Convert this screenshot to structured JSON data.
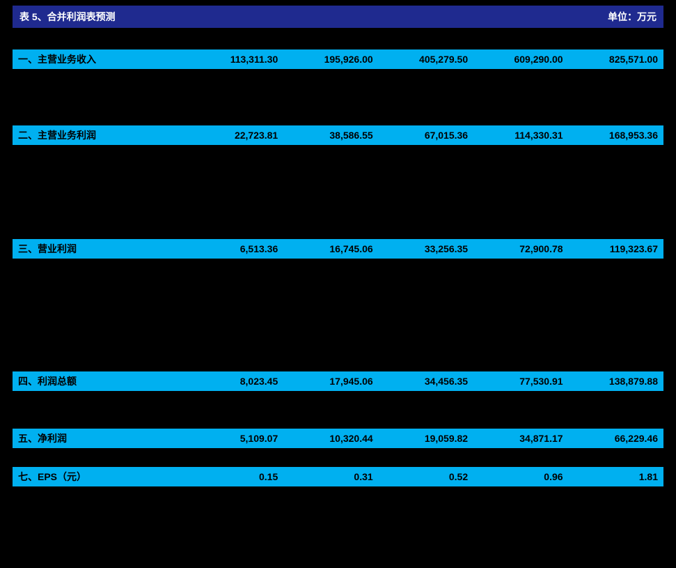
{
  "title_left": "表 5、合并利润表预测",
  "title_right": "单位：万元",
  "colors": {
    "header_bg": "#1f2a8f",
    "header_text": "#ffffff",
    "highlight_bg": "#00b0f0",
    "page_bg": "#000000"
  },
  "rows": [
    {
      "hl": false,
      "cells": [
        "",
        "",
        "",
        "",
        "",
        ""
      ]
    },
    {
      "hl": true,
      "cells": [
        "一、主营业务收入",
        "113,311.30",
        "195,926.00",
        "405,279.50",
        "609,290.00",
        "825,571.00"
      ]
    },
    {
      "hl": false,
      "cells": [
        "",
        "",
        "",
        "",
        "",
        ""
      ]
    },
    {
      "hl": false,
      "cells": [
        "",
        "",
        "",
        "",
        "",
        ""
      ]
    },
    {
      "hl": false,
      "cells": [
        "",
        "",
        "",
        "",
        "",
        ""
      ]
    },
    {
      "hl": true,
      "cells": [
        "二、主营业务利润",
        "22,723.81",
        "38,586.55",
        "67,015.36",
        "114,330.31",
        "168,953.36"
      ]
    },
    {
      "hl": false,
      "cells": [
        "",
        "",
        "",
        "",
        "",
        ""
      ]
    },
    {
      "hl": false,
      "cells": [
        "",
        "",
        "",
        "",
        "",
        ""
      ]
    },
    {
      "hl": false,
      "cells": [
        "",
        "",
        "",
        "",
        "",
        ""
      ]
    },
    {
      "hl": false,
      "cells": [
        "",
        "",
        "",
        "",
        "",
        ""
      ]
    },
    {
      "hl": false,
      "cells": [
        "",
        "",
        "",
        "",
        "",
        ""
      ]
    },
    {
      "hl": true,
      "cells": [
        "三、营业利润",
        "6,513.36",
        "16,745.06",
        "33,256.35",
        "72,900.78",
        "119,323.67"
      ]
    },
    {
      "hl": false,
      "cells": [
        "",
        "",
        "",
        "",
        "",
        ""
      ]
    },
    {
      "hl": false,
      "cells": [
        "",
        "",
        "",
        "",
        "",
        ""
      ]
    },
    {
      "hl": false,
      "cells": [
        "",
        "",
        "",
        "",
        "",
        ""
      ]
    },
    {
      "hl": false,
      "cells": [
        "",
        "",
        "",
        "",
        "",
        ""
      ]
    },
    {
      "hl": false,
      "cells": [
        "",
        "",
        "",
        "",
        "",
        ""
      ]
    },
    {
      "hl": false,
      "cells": [
        "",
        "",
        "",
        "",
        "",
        ""
      ]
    },
    {
      "hl": true,
      "cells": [
        "四、利润总额",
        "8,023.45",
        "17,945.06",
        "34,456.35",
        "77,530.91",
        "138,879.88"
      ]
    },
    {
      "hl": false,
      "cells": [
        "",
        "",
        "",
        "",
        "",
        ""
      ]
    },
    {
      "hl": false,
      "cells": [
        "",
        "",
        "",
        "",
        "",
        ""
      ]
    },
    {
      "hl": true,
      "cells": [
        "五、净利润",
        "5,109.07",
        "10,320.44",
        "19,059.82",
        "34,871.17",
        "66,229.46"
      ]
    },
    {
      "hl": false,
      "cells": [
        "",
        "",
        "",
        "",
        "",
        ""
      ]
    },
    {
      "hl": true,
      "cells": [
        "七、EPS（元）",
        "0.15",
        "0.31",
        "0.52",
        "0.96",
        "1.81"
      ]
    }
  ]
}
